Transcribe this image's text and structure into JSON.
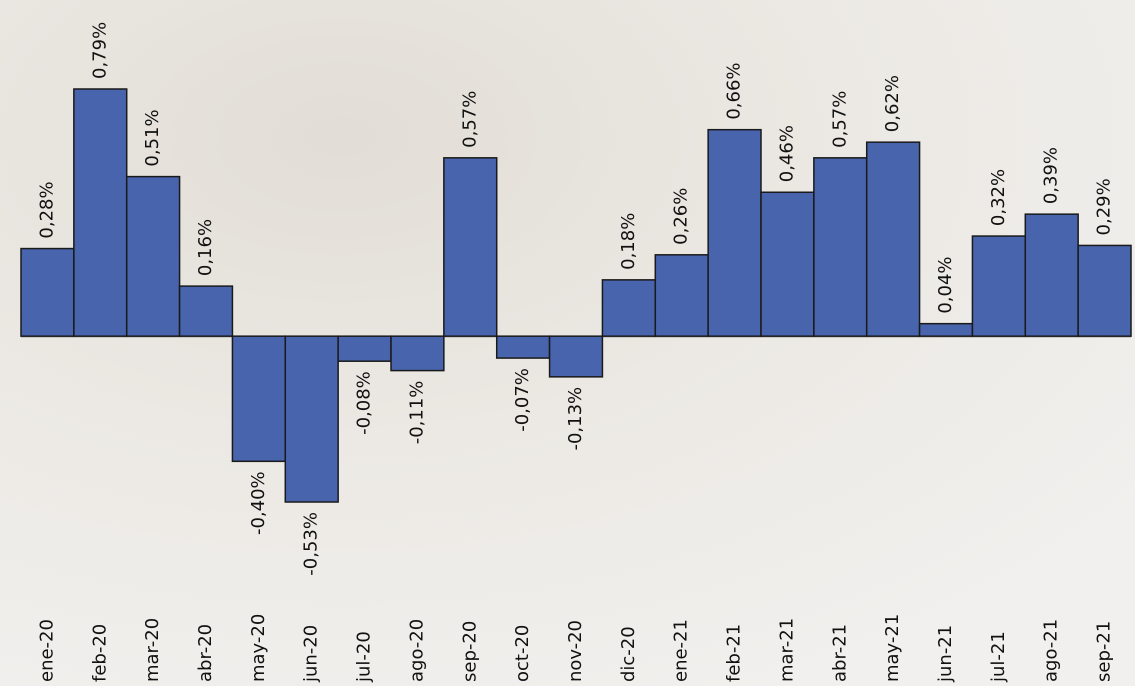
{
  "chart_data": {
    "type": "bar",
    "categories": [
      "ene-20",
      "feb-20",
      "mar-20",
      "abr-20",
      "may-20",
      "jun-20",
      "jul-20",
      "ago-20",
      "sep-20",
      "oct-20",
      "nov-20",
      "dic-20",
      "ene-21",
      "feb-21",
      "mar-21",
      "abr-21",
      "may-21",
      "jun-21",
      "jul-21",
      "ago-21",
      "sep-21"
    ],
    "values": [
      0.28,
      0.79,
      0.51,
      0.16,
      -0.4,
      -0.53,
      -0.08,
      -0.11,
      0.57,
      -0.07,
      -0.13,
      0.18,
      0.26,
      0.66,
      0.46,
      0.57,
      0.62,
      0.04,
      0.32,
      0.39,
      0.29
    ],
    "value_labels": [
      "0,28%",
      "0,79%",
      "0,51%",
      "0,16%",
      "-0,40%",
      "-0,53%",
      "-0,08%",
      "-0,11%",
      "0,57%",
      "-0,07%",
      "-0,13%",
      "0,18%",
      "0,26%",
      "0,66%",
      "0,46%",
      "0,57%",
      "0,62%",
      "0,04%",
      "0,32%",
      "0,39%",
      "0,29%"
    ],
    "color": "#4864ad"
  }
}
